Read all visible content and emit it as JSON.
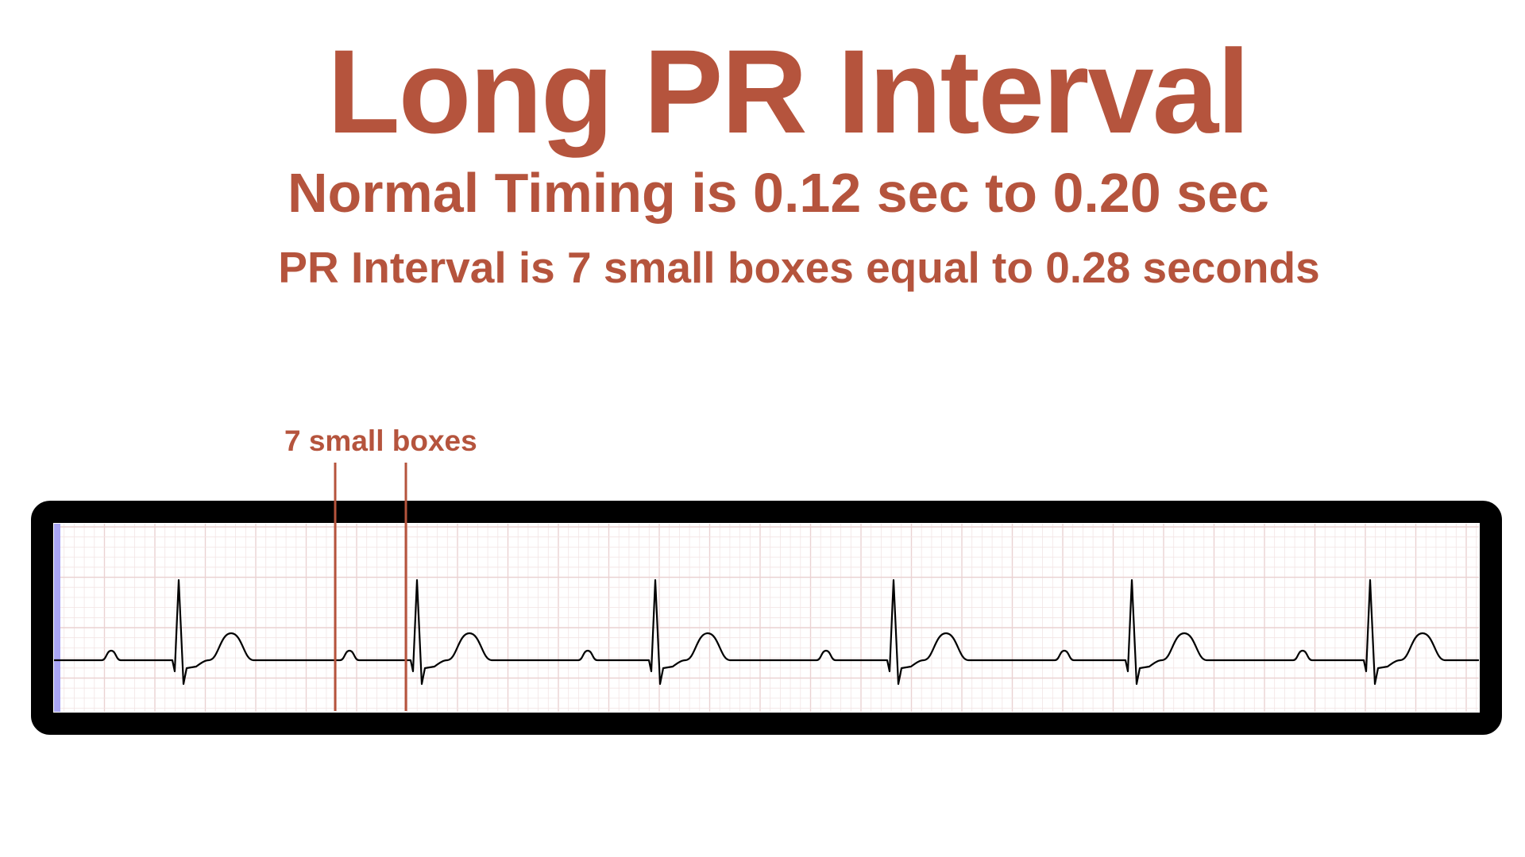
{
  "header": {
    "title": "Long PR Interval",
    "subtitle": "Normal Timing is 0.12 sec to 0.20 sec",
    "measurement": "PR Interval is 7 small boxes equal to 0.28 seconds"
  },
  "annotation": {
    "label": "7 small boxes"
  },
  "colors": {
    "accent": "#b5543d",
    "frame": "#000000",
    "trace": "#000000",
    "grid_minor": "#f2e4e4",
    "grid_major": "#ead2d2",
    "left_band": "#a9a6f5"
  },
  "ecg": {
    "beats": 6
  }
}
